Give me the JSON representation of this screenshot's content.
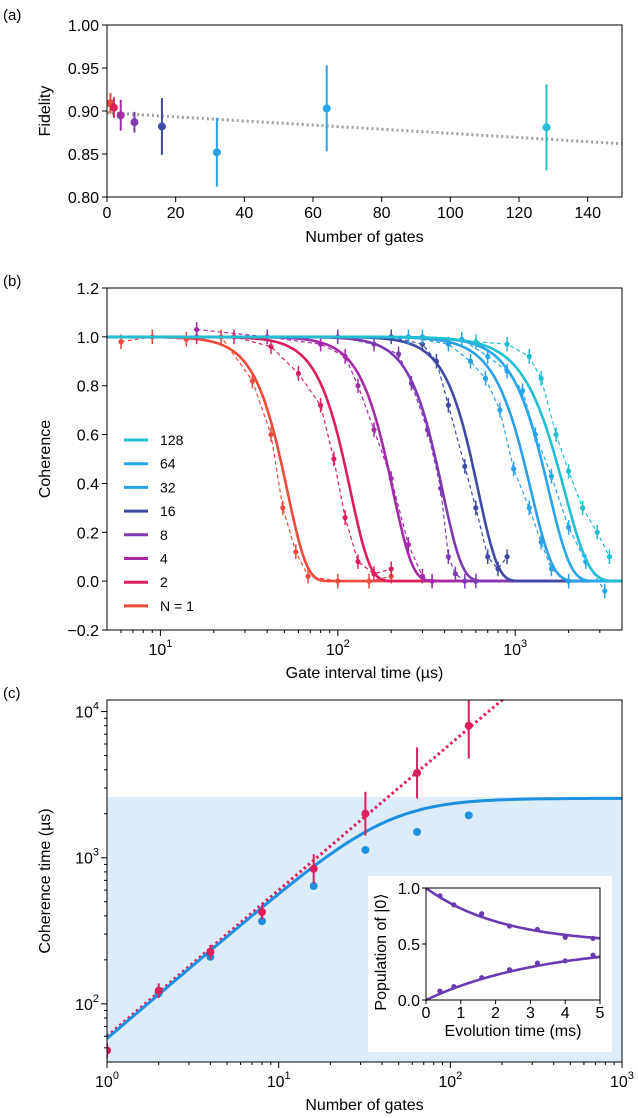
{
  "panel_labels": [
    "(a)",
    "(b)",
    "(c)"
  ],
  "chart_data": [
    {
      "panel": "(a)",
      "type": "scatter",
      "xlabel": "Number of gates",
      "ylabel": "Fidelity",
      "xlim": [
        0,
        150
      ],
      "ylim": [
        0.8,
        1.0
      ],
      "xticks": [
        "0",
        "20",
        "40",
        "60",
        "80",
        "100",
        "120",
        "140"
      ],
      "yticks": [
        "0.80",
        "0.85",
        "0.90",
        "0.95",
        "1.00"
      ],
      "grid": false,
      "points": [
        {
          "x": 1,
          "y": 0.909,
          "err": 0.012,
          "color": "#ef4a3c"
        },
        {
          "x": 2,
          "y": 0.904,
          "err": 0.012,
          "color": "#dc1f5a"
        },
        {
          "x": 4,
          "y": 0.895,
          "err": 0.018,
          "color": "#a52aa8"
        },
        {
          "x": 8,
          "y": 0.887,
          "err": 0.012,
          "color": "#7d3ab2"
        },
        {
          "x": 16,
          "y": 0.882,
          "err": 0.033,
          "color": "#3f4aa4"
        },
        {
          "x": 32,
          "y": 0.852,
          "err": 0.04,
          "color": "#2aa0e6"
        },
        {
          "x": 64,
          "y": 0.903,
          "err": 0.05,
          "color": "#27a6ea"
        },
        {
          "x": 128,
          "y": 0.881,
          "err": 0.05,
          "color": "#20bfd1"
        }
      ],
      "trend_line": {
        "x": [
          0,
          150
        ],
        "y": [
          0.898,
          0.862
        ],
        "style": "dotted",
        "color": "#a0a0a0"
      }
    },
    {
      "panel": "(b)",
      "type": "line",
      "xlabel": "Gate interval time (µs)",
      "ylabel": "Coherence",
      "xscale": "log",
      "xlim": [
        5,
        4000
      ],
      "ylim": [
        -0.2,
        1.2
      ],
      "xticks": [
        10,
        100,
        1000
      ],
      "yticks": [
        "−0.2",
        "0.0",
        "0.2",
        "0.4",
        "0.6",
        "0.8",
        "1.0",
        "1.2"
      ],
      "legend_position": "lower-left",
      "legend_order": [
        "128",
        "64",
        "32",
        "16",
        "8",
        "4",
        "2",
        "N = 1"
      ],
      "series": [
        {
          "name": "N = 1",
          "color": "#ef4a3c",
          "T": 52,
          "p": 4.0,
          "points": [
            [
              6,
              0.98
            ],
            [
              9,
              1.0
            ],
            [
              14,
              0.99
            ],
            [
              22,
              1.0
            ],
            [
              33,
              0.82
            ],
            [
              42,
              0.6
            ],
            [
              49,
              0.3
            ],
            [
              58,
              0.12
            ],
            [
              68,
              0.02
            ],
            [
              100,
              0.0
            ],
            [
              150,
              0.0
            ],
            [
              200,
              0.02
            ]
          ]
        },
        {
          "name": "2",
          "color": "#dc1f5a",
          "T": 118,
          "p": 4.0,
          "points": [
            [
              16,
              1.0
            ],
            [
              26,
              1.0
            ],
            [
              42,
              0.96
            ],
            [
              60,
              0.85
            ],
            [
              80,
              0.72
            ],
            [
              95,
              0.5
            ],
            [
              110,
              0.26
            ],
            [
              130,
              0.08
            ],
            [
              160,
              0.03
            ],
            [
              200,
              0.05
            ]
          ]
        },
        {
          "name": "4",
          "color": "#a52aa8",
          "T": 205,
          "p": 4.0,
          "points": [
            [
              16,
              1.03
            ],
            [
              40,
              1.0
            ],
            [
              80,
              0.97
            ],
            [
              110,
              0.92
            ],
            [
              130,
              0.8
            ],
            [
              160,
              0.62
            ],
            [
              200,
              0.42
            ],
            [
              250,
              0.15
            ],
            [
              300,
              0.02
            ],
            [
              340,
              0.0
            ]
          ]
        },
        {
          "name": "8",
          "color": "#7d3ab2",
          "T": 390,
          "p": 4.0,
          "points": [
            [
              100,
              1.0
            ],
            [
              160,
              0.97
            ],
            [
              220,
              0.93
            ],
            [
              260,
              0.81
            ],
            [
              320,
              0.62
            ],
            [
              380,
              0.38
            ],
            [
              420,
              0.1
            ],
            [
              460,
              0.03
            ],
            [
              520,
              0.0
            ],
            [
              600,
              0.0
            ]
          ]
        },
        {
          "name": "16",
          "color": "#3f4aa4",
          "T": 620,
          "p": 4.0,
          "points": [
            [
              200,
              1.0
            ],
            [
              300,
              0.97
            ],
            [
              360,
              0.9
            ],
            [
              420,
              0.72
            ],
            [
              520,
              0.47
            ],
            [
              600,
              0.3
            ],
            [
              700,
              0.1
            ],
            [
              800,
              0.05
            ],
            [
              900,
              0.1
            ]
          ]
        },
        {
          "name": "32",
          "color": "#2aa0e6",
          "T": 1230,
          "p": 3.6,
          "points": [
            [
              250,
              1.0
            ],
            [
              420,
              0.97
            ],
            [
              560,
              0.9
            ],
            [
              680,
              0.83
            ],
            [
              820,
              0.7
            ],
            [
              980,
              0.46
            ],
            [
              1200,
              0.3
            ],
            [
              1400,
              0.16
            ],
            [
              1600,
              0.05
            ],
            [
              2000,
              0.0
            ]
          ]
        },
        {
          "name": "64",
          "color": "#27a6ea",
          "T": 1550,
          "p": 3.6,
          "points": [
            [
              300,
              1.0
            ],
            [
              500,
              0.99
            ],
            [
              700,
              0.92
            ],
            [
              900,
              0.86
            ],
            [
              1100,
              0.78
            ],
            [
              1300,
              0.6
            ],
            [
              1600,
              0.43
            ],
            [
              2000,
              0.22
            ],
            [
              2500,
              0.08
            ],
            [
              3200,
              -0.04
            ]
          ]
        },
        {
          "name": "128",
          "color": "#20bfd1",
          "T": 1900,
          "p": 3.2,
          "points": [
            [
              600,
              0.98
            ],
            [
              900,
              0.97
            ],
            [
              1200,
              0.92
            ],
            [
              1400,
              0.83
            ],
            [
              1700,
              0.6
            ],
            [
              2000,
              0.45
            ],
            [
              2400,
              0.3
            ],
            [
              2900,
              0.2
            ],
            [
              3400,
              0.1
            ]
          ]
        }
      ]
    },
    {
      "panel": "(c)",
      "type": "scatter",
      "xlabel": "Number of gates",
      "ylabel": "Coherence time (µs)",
      "xscale": "log",
      "yscale": "log",
      "xlim": [
        1,
        1000
      ],
      "ylim": [
        40,
        12000
      ],
      "xtick_labels": [
        {
          "b": "10",
          "e": "0"
        },
        {
          "b": "10",
          "e": "1"
        },
        {
          "b": "10",
          "e": "2"
        },
        {
          "b": "10",
          "e": "3"
        }
      ],
      "ytick_labels": [
        {
          "b": "10",
          "e": "2"
        },
        {
          "b": "10",
          "e": "3"
        },
        {
          "b": "10",
          "e": "4"
        }
      ],
      "shaded_region": {
        "y_max": 2600,
        "color": "#dcecf8"
      },
      "series": [
        {
          "color": "#dc1f5a",
          "style": "dotted-fit",
          "points": [
            {
              "x": 1,
              "y": 48,
              "err": 0.1
            },
            {
              "x": 2,
              "y": 123,
              "err": 0.1
            },
            {
              "x": 4,
              "y": 226,
              "err": 0.1
            },
            {
              "x": 8,
              "y": 425,
              "err": 0.1
            },
            {
              "x": 16,
              "y": 840,
              "err": 0.2
            },
            {
              "x": 32,
              "y": 2000,
              "err": 0.3
            },
            {
              "x": 64,
              "y": 3800,
              "err": 0.35
            },
            {
              "x": 128,
              "y": 8000,
              "err": 0.45
            }
          ],
          "fit": {
            "a": 60,
            "slope": 1.0
          }
        },
        {
          "color": "#1e90e0",
          "style": "solid-fit",
          "points": [
            {
              "x": 1,
              "y": 48
            },
            {
              "x": 2,
              "y": 118
            },
            {
              "x": 4,
              "y": 210
            },
            {
              "x": 8,
              "y": 368
            },
            {
              "x": 16,
              "y": 640
            },
            {
              "x": 32,
              "y": 1130
            },
            {
              "x": 64,
              "y": 1500
            },
            {
              "x": 128,
              "y": 1950
            }
          ],
          "fit": {
            "a": 58,
            "Tmax": 2550
          }
        }
      ],
      "inset": {
        "type": "scatter",
        "xlabel": "Evolution time (ms)",
        "ylabel": "Population of |0⟩",
        "xlim": [
          0,
          5
        ],
        "ylim": [
          0,
          1.0
        ],
        "xticks": [
          "0",
          "1",
          "2",
          "3",
          "4",
          "5"
        ],
        "yticks": [
          "0.0",
          "0.5",
          "1.0"
        ],
        "color": "#6a3ab2",
        "series": [
          {
            "points": [
              [
                0.4,
                0.93
              ],
              [
                0.8,
                0.85
              ],
              [
                1.6,
                0.77
              ],
              [
                2.4,
                0.66
              ],
              [
                3.2,
                0.63
              ],
              [
                4.0,
                0.56
              ],
              [
                4.8,
                0.55
              ]
            ],
            "fit": "decay"
          },
          {
            "points": [
              [
                0.4,
                0.08
              ],
              [
                0.8,
                0.12
              ],
              [
                1.6,
                0.2
              ],
              [
                2.4,
                0.27
              ],
              [
                3.2,
                0.33
              ],
              [
                4.0,
                0.35
              ],
              [
                4.8,
                0.4
              ]
            ],
            "fit": "rise"
          }
        ]
      }
    }
  ]
}
